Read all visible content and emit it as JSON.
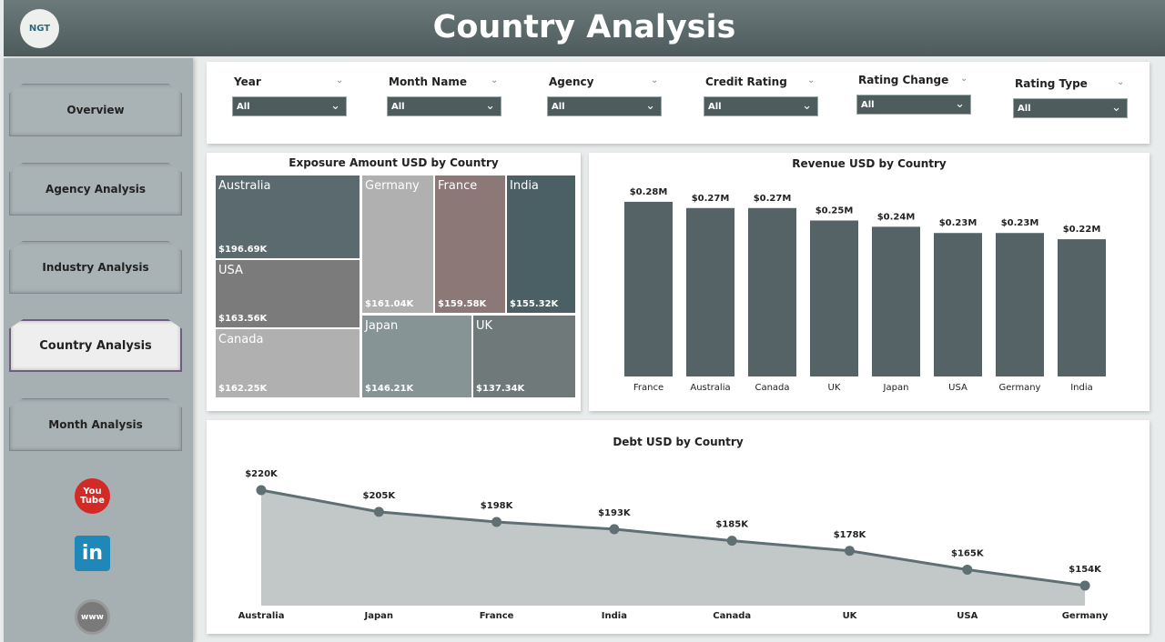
{
  "header": {
    "title": "Country Analysis",
    "logo_text": "NGT"
  },
  "sidebar": {
    "items": [
      {
        "label": "Overview"
      },
      {
        "label": "Agency Analysis"
      },
      {
        "label": "Industry Analysis"
      },
      {
        "label": "Country Analysis",
        "active": true
      },
      {
        "label": "Month Analysis"
      }
    ],
    "social": [
      {
        "icon": "youtube-icon",
        "text": "You Tube",
        "color": "#d42a25"
      },
      {
        "icon": "linkedin-icon",
        "text": "in",
        "color": "#1f88b8"
      },
      {
        "icon": "globe-icon",
        "text": "www",
        "color": "#7a7a7a"
      }
    ]
  },
  "filters": [
    {
      "label": "Year",
      "value": "All"
    },
    {
      "label": "Month Name",
      "value": "All"
    },
    {
      "label": "Agency",
      "value": "All"
    },
    {
      "label": "Credit Rating",
      "value": "All"
    },
    {
      "label": "Rating Change",
      "value": "All"
    },
    {
      "label": "Rating Type",
      "value": "All"
    }
  ],
  "chart_data": [
    {
      "type": "treemap",
      "title": "Exposure Amount USD by Country",
      "items": [
        {
          "name": "Australia",
          "value": 196.69,
          "label": "$196.69K",
          "color": "#5a6a6e"
        },
        {
          "name": "USA",
          "value": 163.56,
          "label": "$163.56K",
          "color": "#7b7b7b"
        },
        {
          "name": "Canada",
          "value": 162.25,
          "label": "$162.25K",
          "color": "#b0b0b0"
        },
        {
          "name": "Germany",
          "value": 161.04,
          "label": "$161.04K",
          "color": "#b0b0b0"
        },
        {
          "name": "France",
          "value": 159.58,
          "label": "$159.58K",
          "color": "#8d7878"
        },
        {
          "name": "India",
          "value": 155.32,
          "label": "$155.32K",
          "color": "#4a6064"
        },
        {
          "name": "Japan",
          "value": 146.21,
          "label": "$146.21K",
          "color": "#879496"
        },
        {
          "name": "UK",
          "value": 137.34,
          "label": "$137.34K",
          "color": "#6f7979"
        }
      ]
    },
    {
      "type": "bar",
      "title": "Revenue USD by Country",
      "color": "#566366",
      "categories": [
        "France",
        "Australia",
        "Canada",
        "UK",
        "Japan",
        "USA",
        "Germany",
        "India"
      ],
      "values": [
        0.28,
        0.27,
        0.27,
        0.25,
        0.24,
        0.23,
        0.23,
        0.22
      ],
      "labels": [
        "$0.28M",
        "$0.27M",
        "$0.27M",
        "$0.25M",
        "$0.24M",
        "$0.23M",
        "$0.23M",
        "$0.22M"
      ]
    },
    {
      "type": "area",
      "title": "Debt USD by Country",
      "line_color": "#5f6f73",
      "fill_color": "#c2c8c7",
      "categories": [
        "Australia",
        "Japan",
        "France",
        "India",
        "Canada",
        "UK",
        "USA",
        "Germany"
      ],
      "values": [
        220,
        205,
        198,
        193,
        185,
        178,
        165,
        154
      ],
      "labels": [
        "$220K",
        "$205K",
        "$198K",
        "$193K",
        "$185K",
        "$178K",
        "$165K",
        "$154K"
      ]
    }
  ]
}
